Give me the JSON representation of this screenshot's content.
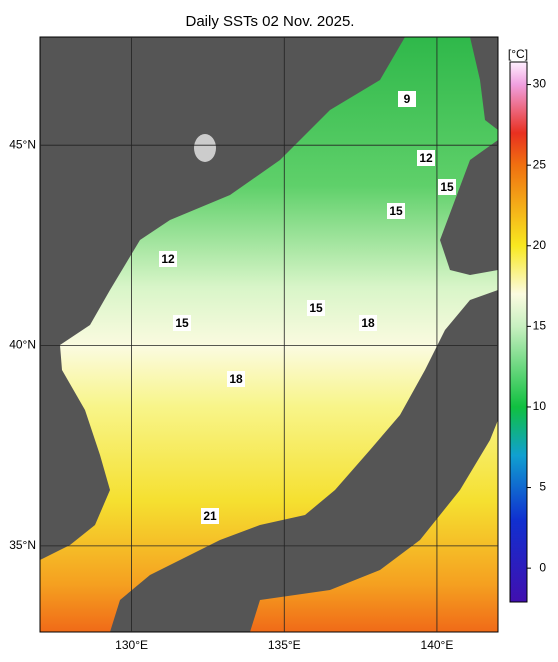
{
  "title": "Daily SSTs 02 Nov. 2025.",
  "map": {
    "lonlim": [
      127,
      142
    ],
    "latlim": [
      32.85,
      47.7
    ],
    "lon_ticks": [
      {
        "value": 130,
        "label": "130°E"
      },
      {
        "value": 135,
        "label": "135°E"
      },
      {
        "value": 140,
        "label": "140°E"
      }
    ],
    "lat_ticks": [
      {
        "value": 45,
        "label": "45°N"
      },
      {
        "value": 40,
        "label": "40°N"
      },
      {
        "value": 35,
        "label": "35°N"
      }
    ],
    "contour_labels": [
      9,
      12,
      15,
      15,
      12,
      15,
      15,
      18,
      18,
      21
    ]
  },
  "colorbar": {
    "unit": "[°C]",
    "lim": [
      -2.1,
      31.4
    ],
    "ticks": [
      0,
      5,
      10,
      15,
      20,
      25,
      30
    ]
  }
}
